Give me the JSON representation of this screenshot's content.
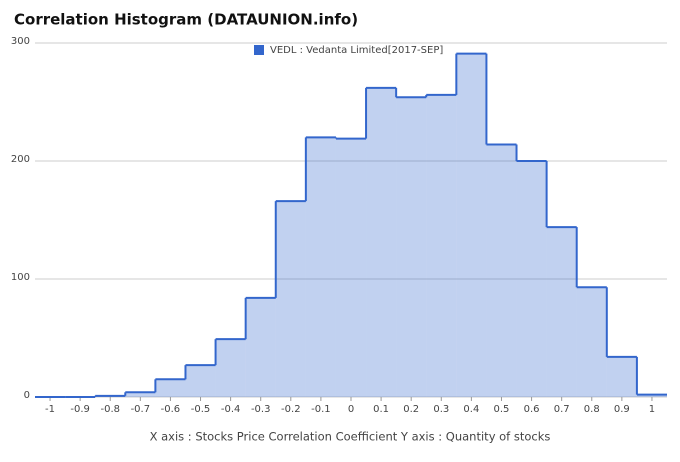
{
  "chart_data": {
    "type": "histogram",
    "title": "Correlation Histogram (DATAUNION.info)",
    "x_label": "X axis : Stocks Price Correlation Coefficient  Y axis : Quantity of stocks",
    "series": [
      {
        "name": "VEDL : Vedanta Limited[2017-SEP]",
        "color": "#3366cc",
        "values": [
          0,
          0,
          1,
          4,
          15,
          27,
          49,
          84,
          166,
          220,
          219,
          262,
          254,
          256,
          291,
          214,
          200,
          144,
          93,
          34,
          2
        ]
      }
    ],
    "bins": [
      -1.05,
      -0.95,
      -0.85,
      -0.75,
      -0.65,
      -0.55,
      -0.45,
      -0.35,
      -0.25,
      -0.15,
      -0.05,
      0.05,
      0.15,
      0.25,
      0.35,
      0.45,
      0.55,
      0.65,
      0.75,
      0.85,
      0.95,
      1.05
    ],
    "xlim": [
      -1.05,
      1.05
    ],
    "xticks": [
      -1,
      -0.9,
      -0.8,
      -0.7,
      -0.6,
      -0.5,
      -0.4,
      -0.3,
      -0.2,
      -0.1,
      0,
      0.1,
      0.2,
      0.3,
      0.4,
      0.5,
      0.6,
      0.7,
      0.8,
      0.9,
      1
    ],
    "ylim": [
      0,
      300
    ],
    "yticks": [
      0,
      100,
      200,
      300
    ],
    "grid": true,
    "legend": "top"
  }
}
